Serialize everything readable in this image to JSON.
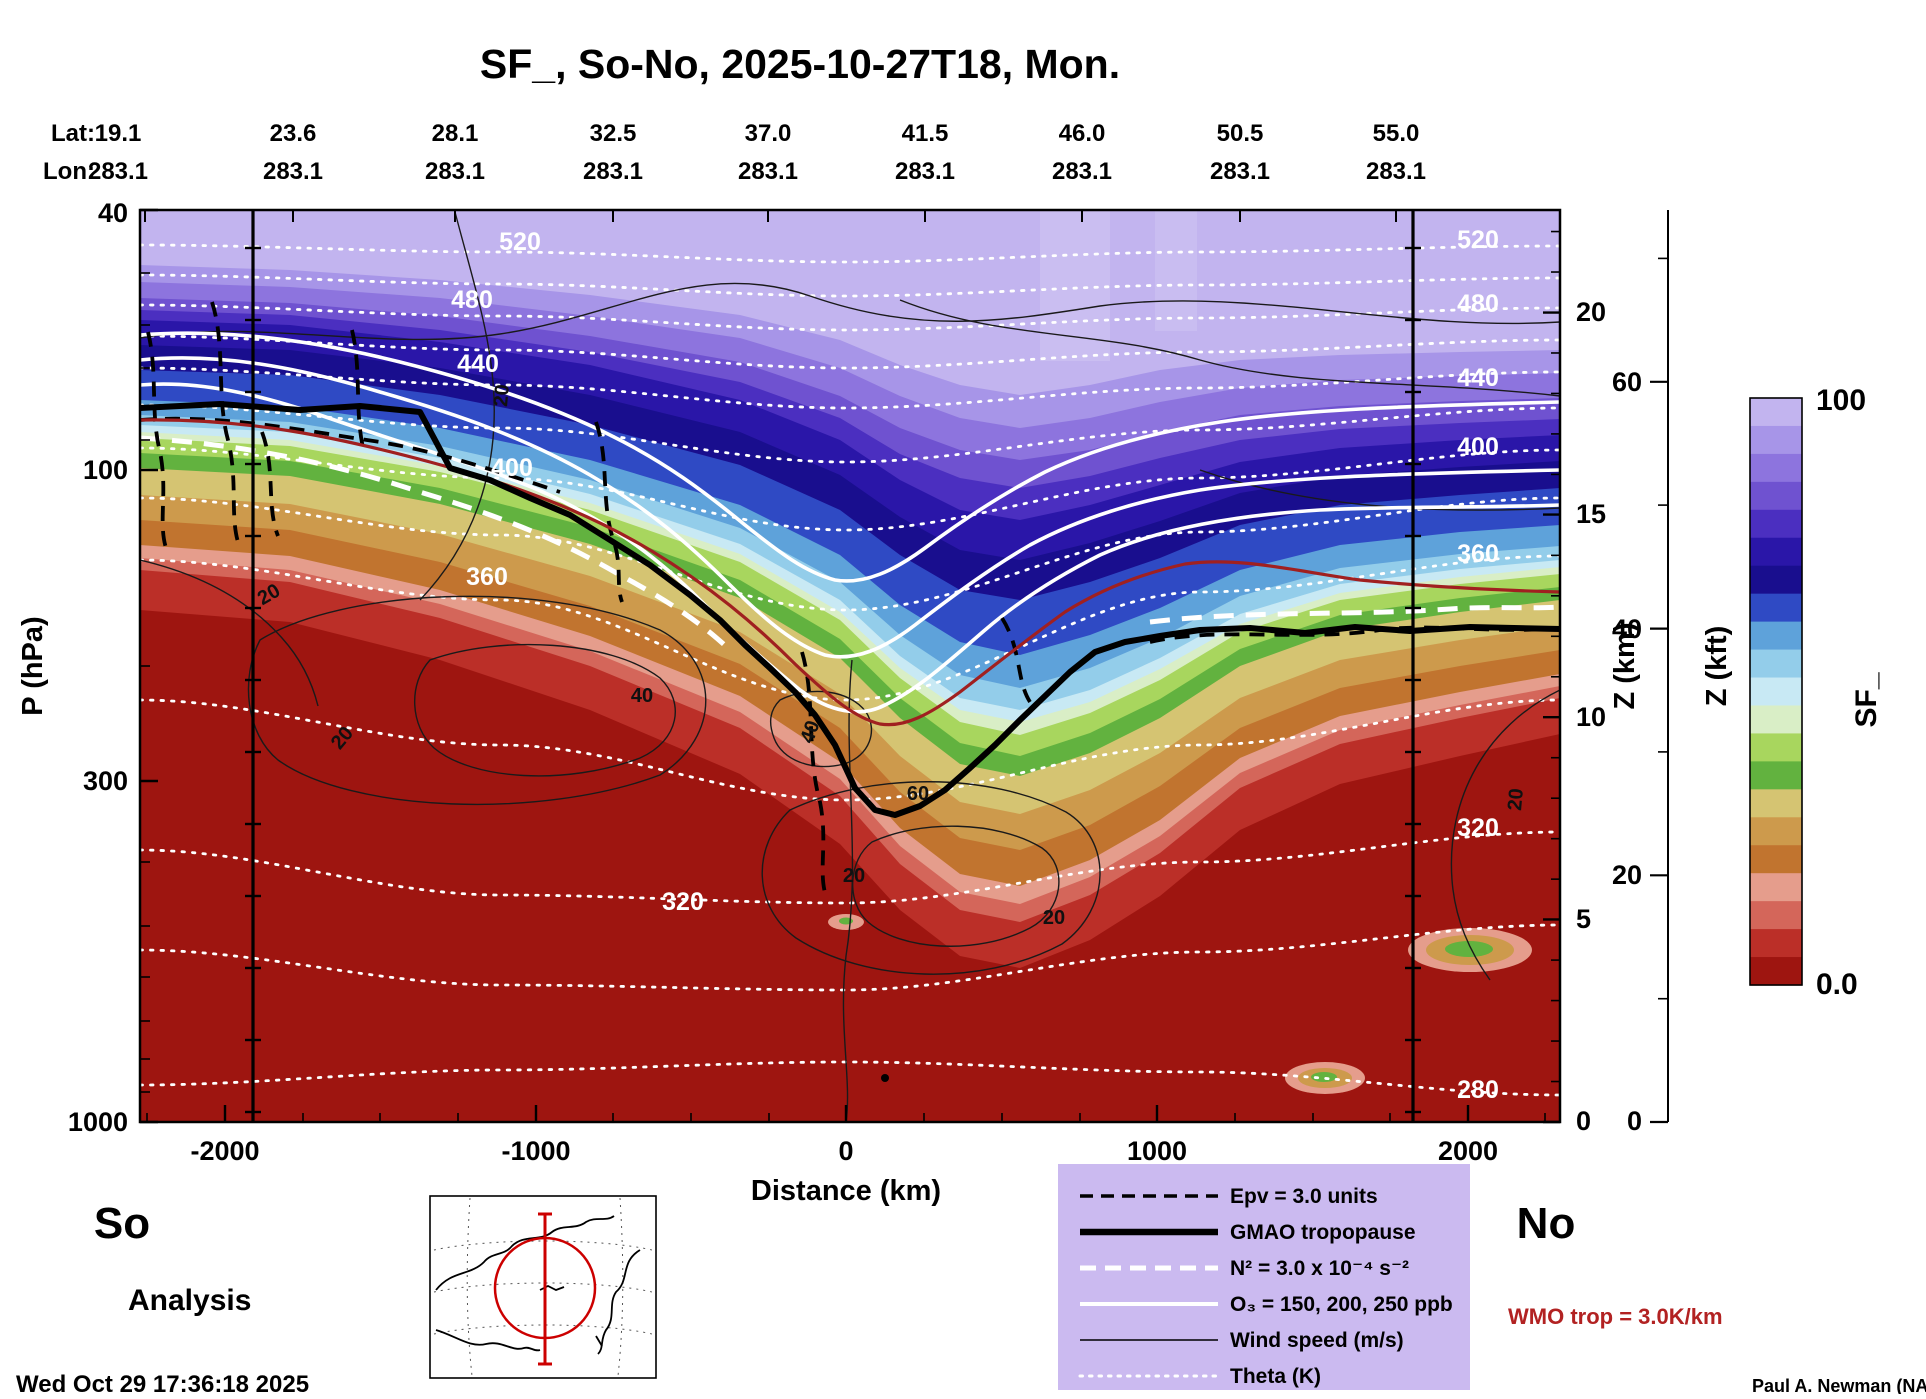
{
  "title": "SF_, So-No, 2025-10-27T18, Mon.",
  "header": {
    "lat_label": "Lat:",
    "lon_label": "Lon:",
    "lats": [
      "19.1",
      "23.6",
      "28.1",
      "32.5",
      "37.0",
      "41.5",
      "46.0",
      "50.5",
      "55.0"
    ],
    "lons": [
      "283.1",
      "283.1",
      "283.1",
      "283.1",
      "283.1",
      "283.1",
      "283.1",
      "283.1",
      "283.1"
    ]
  },
  "axes": {
    "left": {
      "label": "P (hPa)",
      "ticks": [
        "40",
        "100",
        "300",
        "1000"
      ]
    },
    "bottom": {
      "label": "Distance (km)",
      "ticks": [
        "-2000",
        "-1000",
        "0",
        "1000",
        "2000"
      ]
    },
    "right_km": {
      "label": "Z (km)",
      "ticks": [
        "20",
        "15",
        "10",
        "5",
        "0"
      ]
    },
    "right_kft": {
      "label": "Z (kft)",
      "ticks": [
        "60",
        "40",
        "20",
        "0"
      ]
    }
  },
  "endpoints": {
    "south": "So",
    "north": "No"
  },
  "analysis_label": "Analysis",
  "timestamp": "Wed Oct 29 17:36:18 2025",
  "credit": "Paul A. Newman (NASA",
  "wmo_note": "WMO trop = 3.0K/km",
  "legend": {
    "items": [
      {
        "label": "Epv = 3.0 units"
      },
      {
        "label": "GMAO tropopause"
      },
      {
        "label": "N² = 3.0 x 10⁻⁴ s⁻²"
      },
      {
        "label": "O₃ = 150, 200, 250 ppb"
      },
      {
        "label": "Wind speed (m/s)"
      },
      {
        "label": "Theta (K)"
      }
    ]
  },
  "colorbar": {
    "title": "SF_",
    "max_label": "100",
    "min_label": "0.0",
    "colors": [
      "#c2b4ef",
      "#a795e8",
      "#8d74de",
      "#6f52d0",
      "#4b2fc0",
      "#2a16a8",
      "#190e8e",
      "#2f4ac4",
      "#5ea2da",
      "#93cdea",
      "#c8e9f4",
      "#d9eec6",
      "#a8d65e",
      "#62b23f",
      "#d5c472",
      "#cd9a4c",
      "#c1742f",
      "#e59d8c",
      "#d4665a",
      "#bb2f28",
      "#9e1510"
    ]
  },
  "contour_labels": {
    "theta": [
      "520",
      "480",
      "440",
      "400",
      "360",
      "320",
      "280"
    ],
    "wind": [
      "20",
      "40",
      "60"
    ]
  },
  "colors": {
    "legend_bg": "#cbbaf0",
    "wmo_red": "#b22222",
    "tropopause_red": "#a02020"
  },
  "chart_data": {
    "type": "heatmap",
    "subtype": "meridional_cross_section_filled_contours",
    "title": "SF_, So-No, 2025-10-27T18, Mon.",
    "xlabel": "Distance (km)",
    "x_ticks": [
      -2000,
      -1000,
      0,
      1000,
      2000
    ],
    "x_range_km": [
      -2300,
      2300
    ],
    "ylabel": "P (hPa)",
    "y_scale": "log",
    "y_ticks_hPa": [
      40,
      100,
      300,
      1000
    ],
    "y_range_hPa": [
      40,
      1000
    ],
    "secondary_y_axes": [
      {
        "label": "Z (km)",
        "ticks": [
          20,
          15,
          10,
          5,
          0
        ]
      },
      {
        "label": "Z (kft)",
        "ticks": [
          60,
          40,
          20,
          0
        ]
      }
    ],
    "top_axis": {
      "lat_deg": [
        19.1,
        23.6,
        28.1,
        32.5,
        37.0,
        41.5,
        46.0,
        50.5,
        55.0
      ],
      "lon_deg": [
        283.1,
        283.1,
        283.1,
        283.1,
        283.1,
        283.1,
        283.1,
        283.1,
        283.1
      ]
    },
    "fill_field": "SF_",
    "fill_range": [
      0,
      100
    ],
    "colorbar": {
      "top_label": "100",
      "bottom_label": "0.0",
      "title": "SF_"
    },
    "section_endpoints": {
      "south": "So",
      "north": "No"
    },
    "analysis_type": "Analysis",
    "valid_time": "2025-10-27T18",
    "overlays": {
      "theta_K_labeled_contours": [
        280,
        320,
        360,
        400,
        440,
        480,
        520
      ],
      "wind_speed_ms_labeled_contours": [
        20,
        40,
        60
      ],
      "ozone_ppb_contours": [
        150,
        200,
        250
      ],
      "epv_units_contour": 3.0,
      "n_squared_contour": "3.0e-4 s-2",
      "wmo_tropopause_criterion": "3.0 K/km"
    },
    "gmao_tropopause_profile_approx": [
      {
        "distance_km": -2250,
        "p_hPa": 81
      },
      {
        "distance_km": -1500,
        "p_hPa": 105
      },
      {
        "distance_km": -1000,
        "p_hPa": 145
      },
      {
        "distance_km": -500,
        "p_hPa": 200
      },
      {
        "distance_km": -100,
        "p_hPa": 255
      },
      {
        "distance_km": 150,
        "p_hPa": 330
      },
      {
        "distance_km": 300,
        "p_hPa": 310
      },
      {
        "distance_km": 600,
        "p_hPa": 255
      },
      {
        "distance_km": 1000,
        "p_hPa": 200
      },
      {
        "distance_km": 1500,
        "p_hPa": 190
      },
      {
        "distance_km": 2200,
        "p_hPa": 190
      }
    ]
  }
}
